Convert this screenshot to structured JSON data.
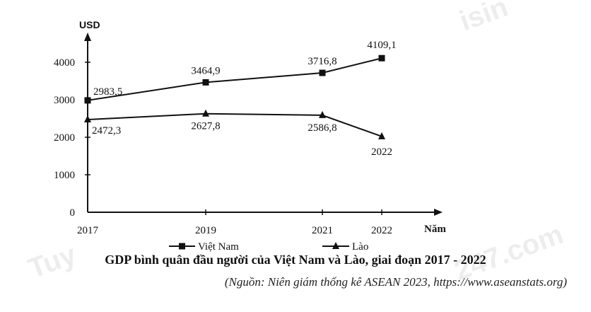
{
  "caption": "GDP bình quân đầu người của Việt Nam và Lào, giai đoạn 2017 - 2022",
  "source": "(Nguồn: Niên giám thống kê ASEAN 2023, https://www.aseanstats.org)",
  "chart_data": {
    "type": "line",
    "title": "",
    "ylabel": "USD",
    "xlabel": "Năm",
    "ylim": [
      0,
      4000
    ],
    "yticks": [
      "0",
      "1000",
      "2000",
      "3000",
      "4000"
    ],
    "x": [
      "2017",
      "2019",
      "2021",
      "2022"
    ],
    "grid": false,
    "legend_position": "bottom",
    "series": [
      {
        "name": "Việt Nam",
        "marker": "square",
        "values": [
          2983.5,
          3464.9,
          3716.8,
          4109.1
        ],
        "labels": [
          "2983,5",
          "3464,9",
          "3716,8",
          "4109,1"
        ]
      },
      {
        "name": "Lào",
        "marker": "triangle",
        "values": [
          2472.3,
          2627.8,
          2586.8,
          2022
        ],
        "labels": [
          "2472,3",
          "2627,8",
          "2586,8",
          "2022"
        ]
      }
    ]
  },
  "colors": {
    "line": "#111111",
    "text": "#111111"
  },
  "watermark": [
    "Tuy",
    "isin",
    "247.com"
  ]
}
